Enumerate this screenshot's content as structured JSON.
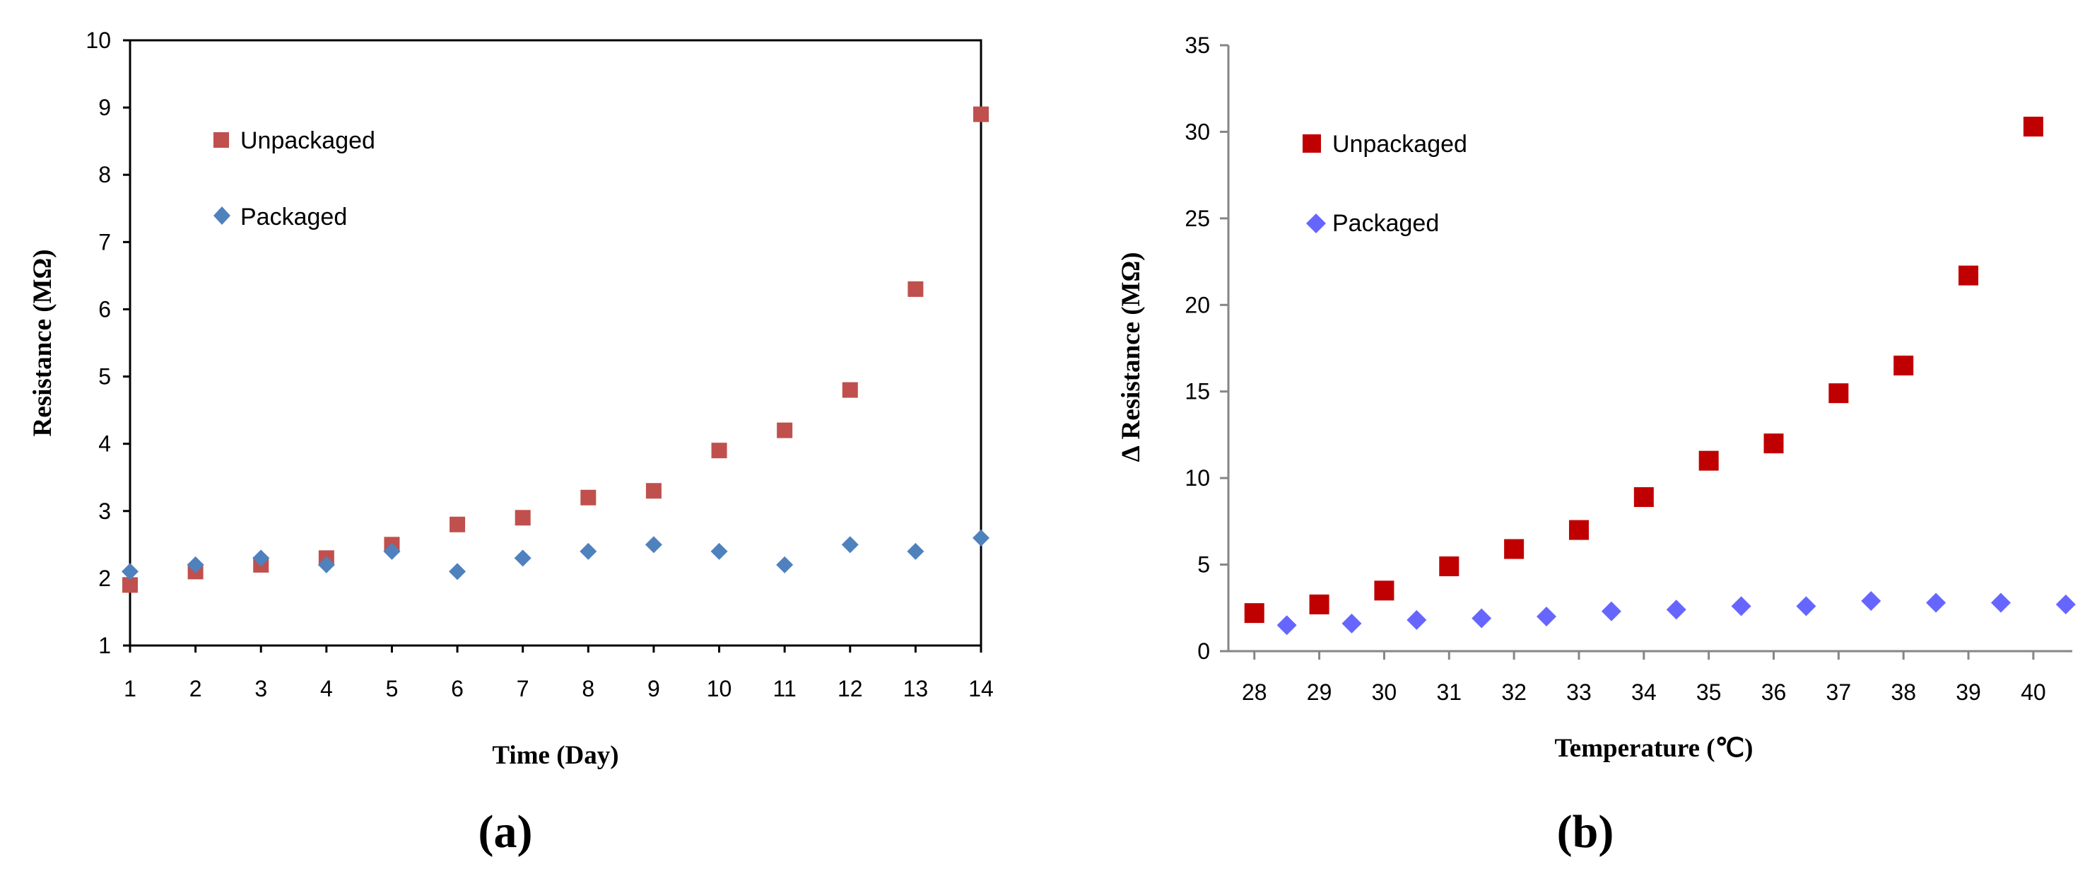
{
  "chart_data": [
    {
      "type": "scatter",
      "panel_label": "(a)",
      "xlabel": "Time (Day)",
      "ylabel": "Resistance (MΩ)",
      "xlim": [
        1,
        14
      ],
      "ylim": [
        1,
        10
      ],
      "x_ticks": [
        "1",
        "2",
        "3",
        "4",
        "5",
        "6",
        "7",
        "8",
        "9",
        "10",
        "11",
        "12",
        "13",
        "14"
      ],
      "y_ticks": [
        "1",
        "2",
        "3",
        "4",
        "5",
        "6",
        "7",
        "8",
        "9",
        "10"
      ],
      "legend": [
        "Unpackaged",
        "Packaged"
      ],
      "series": [
        {
          "name": "Unpackaged",
          "marker": "square",
          "color": "#C0504D",
          "x": [
            1,
            2,
            3,
            4,
            5,
            6,
            7,
            8,
            9,
            10,
            11,
            12,
            13,
            14
          ],
          "y": [
            1.9,
            2.1,
            2.2,
            2.3,
            2.5,
            2.8,
            2.9,
            3.2,
            3.3,
            3.9,
            4.2,
            4.8,
            6.3,
            8.9
          ]
        },
        {
          "name": "Packaged",
          "marker": "diamond",
          "color": "#4F81BD",
          "x": [
            1,
            2,
            3,
            4,
            5,
            6,
            7,
            8,
            9,
            10,
            11,
            12,
            13,
            14
          ],
          "y": [
            2.1,
            2.2,
            2.3,
            2.2,
            2.4,
            2.1,
            2.3,
            2.4,
            2.5,
            2.4,
            2.2,
            2.5,
            2.4,
            2.6
          ]
        }
      ]
    },
    {
      "type": "scatter",
      "panel_label": "(b)",
      "xlabel": "Temperature (℃)",
      "ylabel": "∆ Resistance (MΩ)",
      "xlim": [
        27.6,
        40.6
      ],
      "ylim": [
        0,
        35
      ],
      "x_ticks": [
        "28",
        "29",
        "30",
        "31",
        "32",
        "33",
        "34",
        "35",
        "36",
        "37",
        "38",
        "39",
        "40"
      ],
      "y_ticks": [
        "0",
        "5",
        "10",
        "15",
        "20",
        "25",
        "30",
        "35"
      ],
      "legend": [
        "Unpackaged",
        "Packaged"
      ],
      "series": [
        {
          "name": "Unpackaged",
          "marker": "square",
          "color": "#C00000",
          "x": [
            28,
            29,
            30,
            31,
            32,
            33,
            34,
            35,
            36,
            37,
            38,
            39,
            40
          ],
          "y": [
            2.2,
            2.7,
            3.5,
            4.9,
            5.9,
            7.0,
            8.9,
            11.0,
            12.0,
            14.9,
            16.5,
            21.7,
            30.3
          ]
        },
        {
          "name": "Packaged",
          "marker": "diamond",
          "color": "#6666FF",
          "x": [
            28.5,
            29.5,
            30.5,
            31.5,
            32.5,
            33.5,
            34.5,
            35.5,
            36.5,
            37.5,
            38.5,
            39.5,
            40.5
          ],
          "y": [
            1.5,
            1.6,
            1.8,
            1.9,
            2.0,
            2.3,
            2.4,
            2.6,
            2.6,
            2.9,
            2.8,
            2.8,
            2.7
          ]
        }
      ]
    }
  ]
}
